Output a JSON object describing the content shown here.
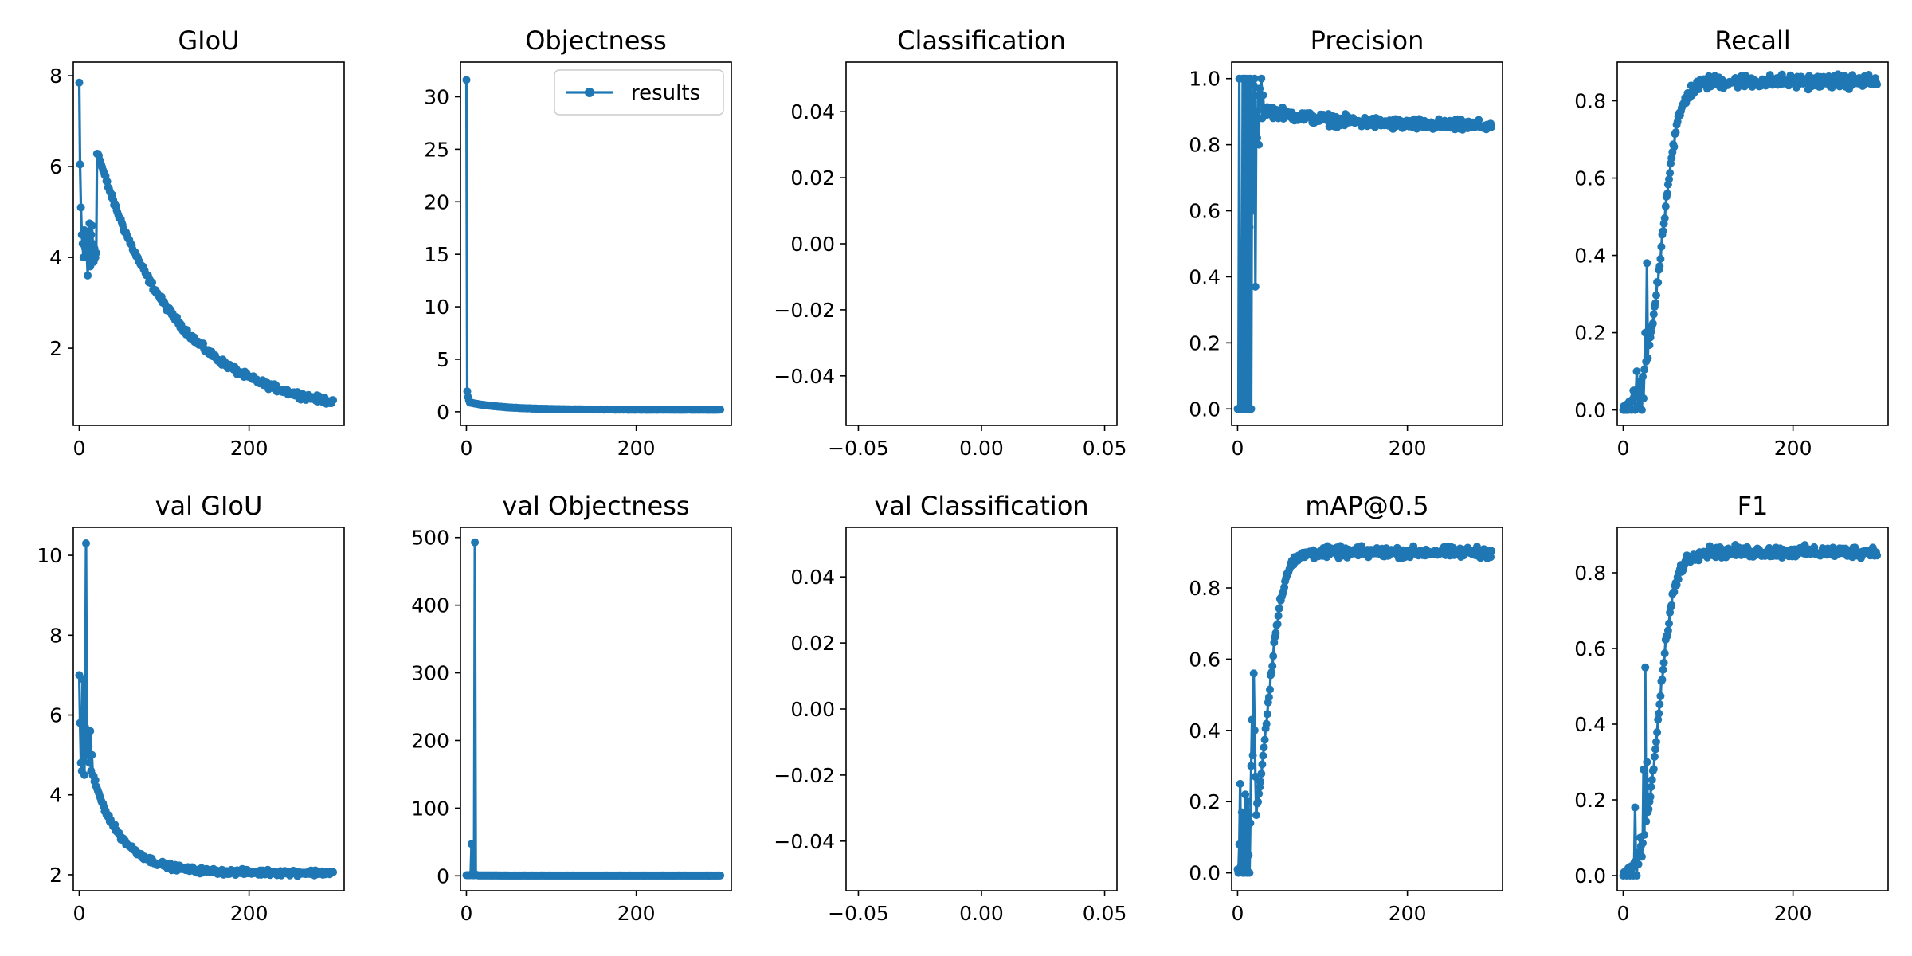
{
  "figure": {
    "line_color": "#1f77b4"
  },
  "chart_data": [
    {
      "id": "giou",
      "type": "line",
      "title": "GIoU",
      "xlim": [
        -7,
        312
      ],
      "ylim": [
        0.3,
        8.3
      ],
      "xticks": [
        {
          "value": 0,
          "label": "0"
        },
        {
          "value": 200,
          "label": "200"
        }
      ],
      "yticks": [
        {
          "value": 2,
          "label": "2"
        },
        {
          "value": 4,
          "label": "4"
        },
        {
          "value": 6,
          "label": "6"
        },
        {
          "value": 8,
          "label": "8"
        }
      ],
      "legend": null,
      "series": [
        {
          "name": "results",
          "kind": "decay",
          "n": 300,
          "start": 7.85,
          "end": 0.55,
          "rate": 0.011,
          "noise": 0.1,
          "overrides": [
            [
              0,
              7.85
            ],
            [
              1,
              6.05
            ],
            [
              2,
              5.1
            ],
            [
              3,
              4.5
            ],
            [
              4,
              4.3
            ],
            [
              5,
              4.0
            ],
            [
              6,
              4.6
            ],
            [
              7,
              4.2
            ],
            [
              8,
              4.55
            ],
            [
              9,
              4.1
            ],
            [
              10,
              3.6
            ],
            [
              11,
              4.4
            ],
            [
              12,
              4.75
            ],
            [
              13,
              3.8
            ],
            [
              14,
              4.5
            ],
            [
              15,
              4.7
            ],
            [
              16,
              4.3
            ],
            [
              17,
              3.9
            ],
            [
              18,
              4.2
            ],
            [
              19,
              4.0
            ],
            [
              20,
              4.1
            ]
          ]
        }
      ]
    },
    {
      "id": "objectness",
      "type": "line",
      "title": "Objectness",
      "xlim": [
        -7,
        312
      ],
      "ylim": [
        -1.3,
        33.3
      ],
      "xticks": [
        {
          "value": 0,
          "label": "0"
        },
        {
          "value": 200,
          "label": "200"
        }
      ],
      "yticks": [
        {
          "value": 0,
          "label": "0"
        },
        {
          "value": 5,
          "label": "5"
        },
        {
          "value": 10,
          "label": "10"
        },
        {
          "value": 15,
          "label": "15"
        },
        {
          "value": 20,
          "label": "20"
        },
        {
          "value": 25,
          "label": "25"
        },
        {
          "value": 30,
          "label": "30"
        }
      ],
      "legend": {
        "position": "upper-right",
        "label": "results"
      },
      "series": [
        {
          "name": "results",
          "kind": "decay",
          "n": 300,
          "start": 0.95,
          "end": 0.2,
          "rate": 0.025,
          "noise": 0.02,
          "overrides": [
            [
              0,
              31.6
            ],
            [
              1,
              1.95
            ],
            [
              2,
              1.4
            ],
            [
              3,
              1.1
            ]
          ]
        }
      ]
    },
    {
      "id": "classification",
      "type": "line",
      "title": "Classification",
      "xlim": [
        -0.055,
        0.055
      ],
      "ylim": [
        -0.055,
        0.055
      ],
      "xticks": [
        {
          "value": -0.05,
          "label": "−0.05"
        },
        {
          "value": 0,
          "label": "0.00"
        },
        {
          "value": 0.05,
          "label": "0.05"
        }
      ],
      "yticks": [
        {
          "value": -0.04,
          "label": "−0.04"
        },
        {
          "value": -0.02,
          "label": "−0.02"
        },
        {
          "value": 0,
          "label": "0.00"
        },
        {
          "value": 0.02,
          "label": "0.02"
        },
        {
          "value": 0.04,
          "label": "0.04"
        }
      ],
      "legend": null,
      "series": []
    },
    {
      "id": "precision",
      "type": "line",
      "title": "Precision",
      "xlim": [
        -7,
        312
      ],
      "ylim": [
        -0.05,
        1.05
      ],
      "xticks": [
        {
          "value": 0,
          "label": "0"
        },
        {
          "value": 200,
          "label": "200"
        }
      ],
      "yticks": [
        {
          "value": 0,
          "label": "0.0"
        },
        {
          "value": 0.2,
          "label": "0.2"
        },
        {
          "value": 0.4,
          "label": "0.4"
        },
        {
          "value": 0.6,
          "label": "0.6"
        },
        {
          "value": 0.8,
          "label": "0.8"
        },
        {
          "value": 1,
          "label": "1.0"
        }
      ],
      "legend": null,
      "series": [
        {
          "name": "results",
          "kind": "decay",
          "n": 300,
          "start": 0.93,
          "end": 0.855,
          "rate": 0.012,
          "noise": 0.025,
          "overrides": [
            [
              0,
              0.0
            ],
            [
              1,
              0.0
            ],
            [
              2,
              1.0
            ],
            [
              3,
              0.0
            ],
            [
              4,
              0.0
            ],
            [
              5,
              0.0
            ],
            [
              6,
              1.0
            ],
            [
              7,
              0.15
            ],
            [
              8,
              0.0
            ],
            [
              9,
              1.0
            ],
            [
              10,
              0.0
            ],
            [
              11,
              0.73
            ],
            [
              12,
              1.0
            ],
            [
              13,
              0.0
            ],
            [
              14,
              0.55
            ],
            [
              15,
              1.0
            ],
            [
              16,
              0.0
            ],
            [
              17,
              0.9
            ],
            [
              18,
              0.6
            ],
            [
              19,
              0.98
            ],
            [
              20,
              1.0
            ],
            [
              21,
              0.37
            ],
            [
              22,
              0.9
            ],
            [
              23,
              0.82
            ],
            [
              24,
              0.95
            ],
            [
              25,
              0.8
            ],
            [
              26,
              0.97
            ],
            [
              27,
              0.93
            ],
            [
              28,
              1.0
            ],
            [
              29,
              0.88
            ],
            [
              30,
              0.95
            ]
          ]
        }
      ]
    },
    {
      "id": "recall",
      "type": "line",
      "title": "Recall",
      "xlim": [
        -7,
        312
      ],
      "ylim": [
        -0.04,
        0.9
      ],
      "xticks": [
        {
          "value": 0,
          "label": "0"
        },
        {
          "value": 200,
          "label": "200"
        }
      ],
      "yticks": [
        {
          "value": 0,
          "label": "0.0"
        },
        {
          "value": 0.2,
          "label": "0.2"
        },
        {
          "value": 0.4,
          "label": "0.4"
        },
        {
          "value": 0.6,
          "label": "0.6"
        },
        {
          "value": 0.8,
          "label": "0.8"
        }
      ],
      "legend": null,
      "series": [
        {
          "name": "results",
          "kind": "rise",
          "n": 300,
          "end": 0.85,
          "center": 45,
          "width": 10,
          "noise": 0.025,
          "overrides": [
            [
              0,
              0.0
            ],
            [
              2,
              0.0
            ],
            [
              4,
              0.0
            ],
            [
              6,
              0.0
            ],
            [
              8,
              0.02
            ],
            [
              10,
              0.0
            ],
            [
              12,
              0.05
            ],
            [
              14,
              0.0
            ],
            [
              16,
              0.1
            ],
            [
              18,
              0.01
            ],
            [
              20,
              0.05
            ],
            [
              22,
              0.0
            ],
            [
              24,
              0.03
            ],
            [
              26,
              0.2
            ],
            [
              28,
              0.38
            ],
            [
              30,
              0.2
            ]
          ]
        }
      ]
    },
    {
      "id": "val-giou",
      "type": "line",
      "title": "val GIoU",
      "xlim": [
        -7,
        312
      ],
      "ylim": [
        1.6,
        10.7
      ],
      "xticks": [
        {
          "value": 0,
          "label": "0"
        },
        {
          "value": 200,
          "label": "200"
        }
      ],
      "yticks": [
        {
          "value": 2,
          "label": "2"
        },
        {
          "value": 4,
          "label": "4"
        },
        {
          "value": 6,
          "label": "6"
        },
        {
          "value": 8,
          "label": "8"
        },
        {
          "value": 10,
          "label": "10"
        }
      ],
      "legend": null,
      "series": [
        {
          "name": "results",
          "kind": "decay",
          "n": 300,
          "start": 6.0,
          "end": 2.05,
          "rate": 0.03,
          "noise": 0.1,
          "overrides": [
            [
              0,
              7.0
            ],
            [
              1,
              5.8
            ],
            [
              2,
              4.8
            ],
            [
              3,
              4.6
            ],
            [
              4,
              6.9
            ],
            [
              5,
              4.9
            ],
            [
              6,
              4.5
            ],
            [
              7,
              5.7
            ],
            [
              8,
              10.3
            ],
            [
              9,
              5.0
            ],
            [
              10,
              5.5
            ],
            [
              11,
              5.2
            ],
            [
              12,
              4.8
            ],
            [
              13,
              5.6
            ],
            [
              14,
              4.6
            ],
            [
              15,
              5.0
            ]
          ]
        }
      ]
    },
    {
      "id": "val-objectness",
      "type": "line",
      "title": "val Objectness",
      "xlim": [
        -7,
        312
      ],
      "ylim": [
        -22,
        515
      ],
      "xticks": [
        {
          "value": 0,
          "label": "0"
        },
        {
          "value": 200,
          "label": "200"
        }
      ],
      "yticks": [
        {
          "value": 0,
          "label": "0"
        },
        {
          "value": 100,
          "label": "100"
        },
        {
          "value": 200,
          "label": "200"
        },
        {
          "value": 300,
          "label": "300"
        },
        {
          "value": 400,
          "label": "400"
        },
        {
          "value": 500,
          "label": "500"
        }
      ],
      "legend": null,
      "series": [
        {
          "name": "results",
          "kind": "decay",
          "n": 300,
          "start": 1.0,
          "end": 0.5,
          "rate": 0.05,
          "noise": 0.1,
          "overrides": [
            [
              0,
              1.0
            ],
            [
              4,
              1.0
            ],
            [
              6,
              47
            ],
            [
              7,
              3.0
            ],
            [
              10,
              493
            ],
            [
              11,
              2.0
            ],
            [
              12,
              1.0
            ]
          ]
        }
      ]
    },
    {
      "id": "val-classification",
      "type": "line",
      "title": "val Classification",
      "xlim": [
        -0.055,
        0.055
      ],
      "ylim": [
        -0.055,
        0.055
      ],
      "xticks": [
        {
          "value": -0.05,
          "label": "−0.05"
        },
        {
          "value": 0,
          "label": "0.00"
        },
        {
          "value": 0.05,
          "label": "0.05"
        }
      ],
      "yticks": [
        {
          "value": -0.04,
          "label": "−0.04"
        },
        {
          "value": -0.02,
          "label": "−0.02"
        },
        {
          "value": 0,
          "label": "0.00"
        },
        {
          "value": 0.02,
          "label": "0.02"
        },
        {
          "value": 0.04,
          "label": "0.04"
        }
      ],
      "legend": null,
      "series": []
    },
    {
      "id": "map50",
      "type": "line",
      "title": "mAP@0.5",
      "xlim": [
        -7,
        312
      ],
      "ylim": [
        -0.05,
        0.97
      ],
      "xticks": [
        {
          "value": 0,
          "label": "0"
        },
        {
          "value": 200,
          "label": "200"
        }
      ],
      "yticks": [
        {
          "value": 0,
          "label": "0.0"
        },
        {
          "value": 0.2,
          "label": "0.2"
        },
        {
          "value": 0.4,
          "label": "0.4"
        },
        {
          "value": 0.6,
          "label": "0.6"
        },
        {
          "value": 0.8,
          "label": "0.8"
        }
      ],
      "legend": null,
      "series": [
        {
          "name": "results",
          "kind": "rise",
          "n": 300,
          "end": 0.9,
          "center": 35,
          "width": 9,
          "noise": 0.022,
          "overrides": [
            [
              0,
              0.01
            ],
            [
              1,
              0.0
            ],
            [
              2,
              0.08
            ],
            [
              3,
              0.25
            ],
            [
              4,
              0.02
            ],
            [
              5,
              0.17
            ],
            [
              6,
              0.0
            ],
            [
              7,
              0.15
            ],
            [
              8,
              0.0
            ],
            [
              9,
              0.22
            ],
            [
              10,
              0.05
            ],
            [
              11,
              0.0
            ],
            [
              12,
              0.2
            ],
            [
              13,
              0.05
            ],
            [
              14,
              0.0
            ],
            [
              15,
              0.14
            ],
            [
              16,
              0.3
            ],
            [
              17,
              0.43
            ],
            [
              18,
              0.33
            ],
            [
              19,
              0.56
            ],
            [
              20,
              0.4
            ],
            [
              21,
              0.27
            ]
          ]
        }
      ]
    },
    {
      "id": "f1",
      "type": "line",
      "title": "F1",
      "xlim": [
        -7,
        312
      ],
      "ylim": [
        -0.04,
        0.92
      ],
      "xticks": [
        {
          "value": 0,
          "label": "0"
        },
        {
          "value": 200,
          "label": "200"
        }
      ],
      "yticks": [
        {
          "value": 0,
          "label": "0.0"
        },
        {
          "value": 0.2,
          "label": "0.2"
        },
        {
          "value": 0.4,
          "label": "0.4"
        },
        {
          "value": 0.6,
          "label": "0.6"
        },
        {
          "value": 0.8,
          "label": "0.8"
        }
      ],
      "legend": null,
      "series": [
        {
          "name": "results",
          "kind": "rise",
          "n": 300,
          "end": 0.855,
          "center": 42,
          "width": 9,
          "noise": 0.022,
          "overrides": [
            [
              0,
              0.0
            ],
            [
              2,
              0.01
            ],
            [
              4,
              0.0
            ],
            [
              6,
              0.02
            ],
            [
              8,
              0.0
            ],
            [
              10,
              0.02
            ],
            [
              12,
              0.0
            ],
            [
              14,
              0.18
            ],
            [
              16,
              0.0
            ],
            [
              18,
              0.03
            ],
            [
              20,
              0.1
            ],
            [
              22,
              0.05
            ],
            [
              24,
              0.28
            ],
            [
              26,
              0.55
            ],
            [
              28,
              0.3
            ]
          ]
        }
      ]
    }
  ]
}
